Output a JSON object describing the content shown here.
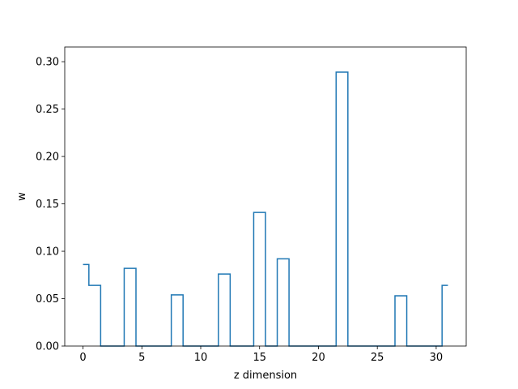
{
  "chart_data": {
    "type": "line",
    "drawstyle": "steps-mid",
    "title": "",
    "xlabel": "z dimension",
    "ylabel": "w",
    "xlim": [
      -1.55,
      32.55
    ],
    "ylim": [
      0,
      0.3155
    ],
    "xticks": [
      0,
      5,
      10,
      15,
      20,
      25,
      30
    ],
    "yticks": [
      0.0,
      0.05,
      0.1,
      0.15,
      0.2,
      0.25,
      0.3
    ],
    "ytick_labels": [
      "0.00",
      "0.05",
      "0.10",
      "0.15",
      "0.20",
      "0.25",
      "0.30"
    ],
    "grid": false,
    "series": [
      {
        "color": "#1f77b4",
        "x": [
          0,
          1,
          2,
          3,
          4,
          5,
          6,
          7,
          8,
          9,
          10,
          11,
          12,
          13,
          14,
          15,
          16,
          17,
          18,
          19,
          20,
          21,
          22,
          23,
          24,
          25,
          26,
          27,
          28,
          29,
          30,
          31
        ],
        "y": [
          0.086,
          0.064,
          0,
          0,
          0.082,
          0,
          0,
          0,
          0.054,
          0,
          0,
          0,
          0.076,
          0,
          0,
          0.141,
          0,
          0.092,
          0,
          0,
          0,
          0,
          0.289,
          0,
          0,
          0,
          0,
          0.053,
          0,
          0,
          0,
          0.064
        ]
      }
    ]
  }
}
